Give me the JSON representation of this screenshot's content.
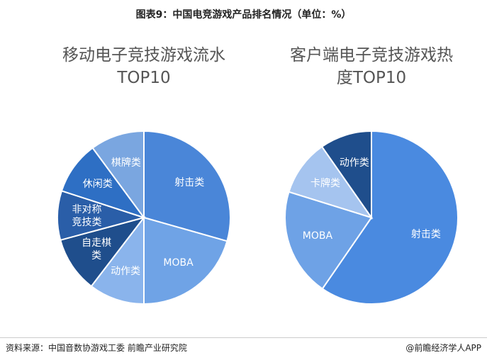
{
  "header": {
    "title": "图表9：中国电竞游戏产品排名情况（单位：%）"
  },
  "chart_data": [
    {
      "type": "pie",
      "title": "移动电子竞技游戏流水TOP10",
      "categories": [
        "射击类",
        "MOBA",
        "动作类",
        "自走棋类",
        "非对称竞技类",
        "休闲类",
        "棋牌类"
      ],
      "values": [
        29.4,
        20.6,
        10.4,
        10.4,
        9.2,
        9.9,
        10.1
      ],
      "colors": [
        "#4a86d8",
        "#6fa3e6",
        "#8ab4ec",
        "#1f4e8c",
        "#2a5ea8",
        "#2e6fc4",
        "#7aa6e0"
      ]
    },
    {
      "type": "pie",
      "title": "客户端电子竞技游戏热度TOP10",
      "categories": [
        "射击类",
        "MOBA",
        "卡牌类",
        "动作类"
      ],
      "values": [
        59.6,
        20.2,
        10.5,
        9.7
      ],
      "colors": [
        "#4a8ae0",
        "#6ea2e6",
        "#a5c4ef",
        "#1f4e8c"
      ]
    }
  ],
  "footer": {
    "source": "资料来源：中国音数协游戏工委 前瞻产业研究院",
    "brand": "@前瞻经济学人APP"
  }
}
